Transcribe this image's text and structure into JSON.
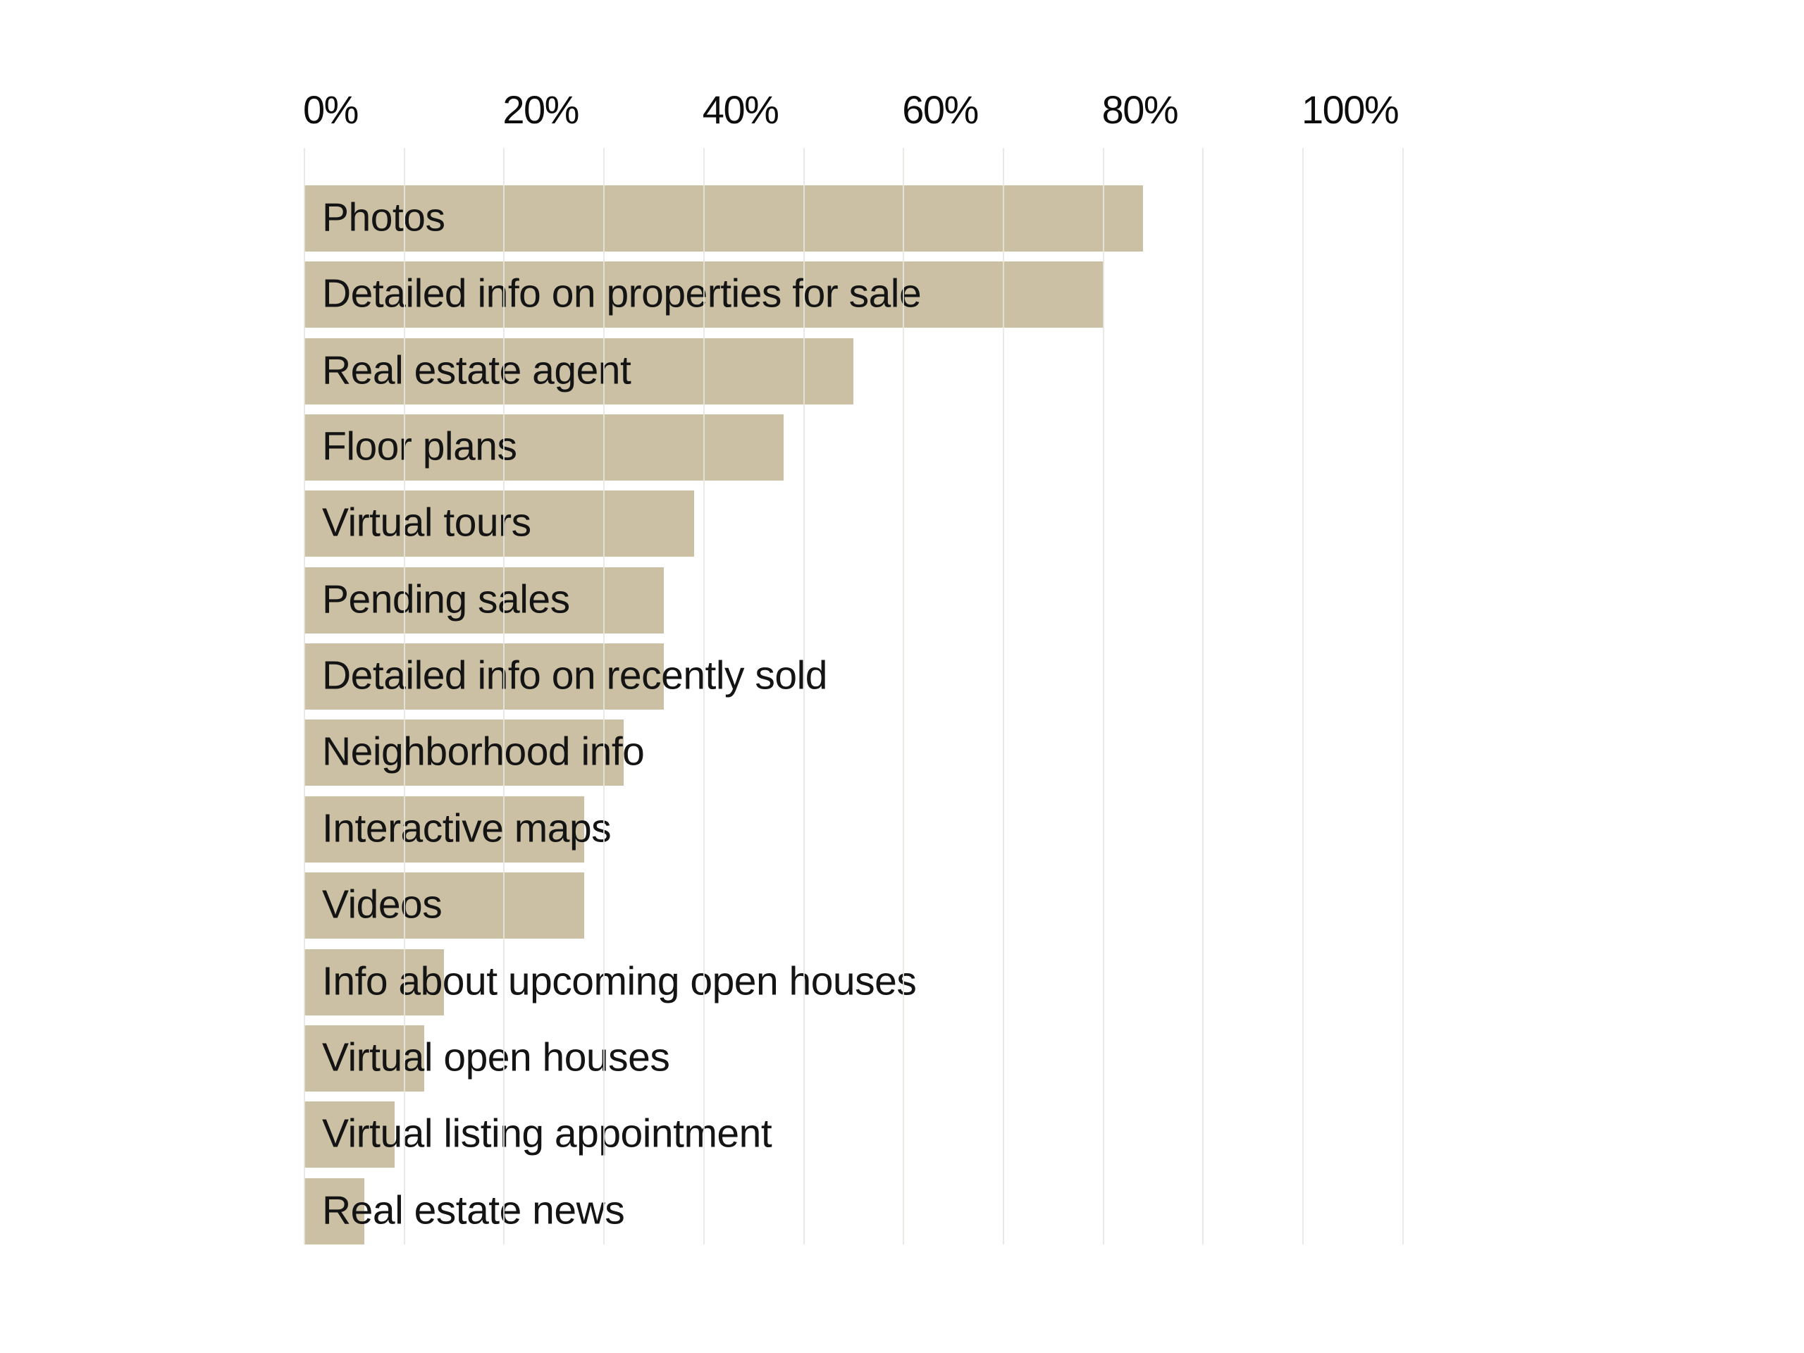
{
  "chart_data": {
    "type": "bar",
    "orientation": "horizontal",
    "title": "",
    "xlabel": "",
    "ylabel": "",
    "unit": "%",
    "categories": [
      "Photos",
      "Detailed info on properties for sale",
      "Real estate agent",
      "Floor plans",
      "Virtual tours",
      "Pending sales",
      "Detailed info on recently sold",
      "Neighborhood info",
      "Interactive maps",
      "Videos",
      "Info about upcoming open houses",
      "Virtual open houses",
      "Virtual listing appointment",
      "Real estate news"
    ],
    "values": [
      84,
      80,
      55,
      48,
      39,
      36,
      36,
      32,
      28,
      28,
      14,
      12,
      9,
      6
    ],
    "x_ticks": [
      "0%",
      "20%",
      "40%",
      "60%",
      "80%",
      "100%"
    ],
    "x_tick_values": [
      0,
      20,
      40,
      60,
      80,
      100
    ],
    "gridline_values": [
      0,
      10,
      20,
      30,
      40,
      50,
      60,
      70,
      80,
      90,
      100,
      110
    ],
    "xlim": [
      0,
      110
    ],
    "grid": "vertical, every 10%",
    "legend": "none",
    "value_labels": "none",
    "bar_color": "#cbc0a3",
    "bar_label_color": "#141414",
    "axis_label_color": "#0d0d0d",
    "gridline_color": "#e7e5df",
    "background_color": "#ffffff"
  }
}
